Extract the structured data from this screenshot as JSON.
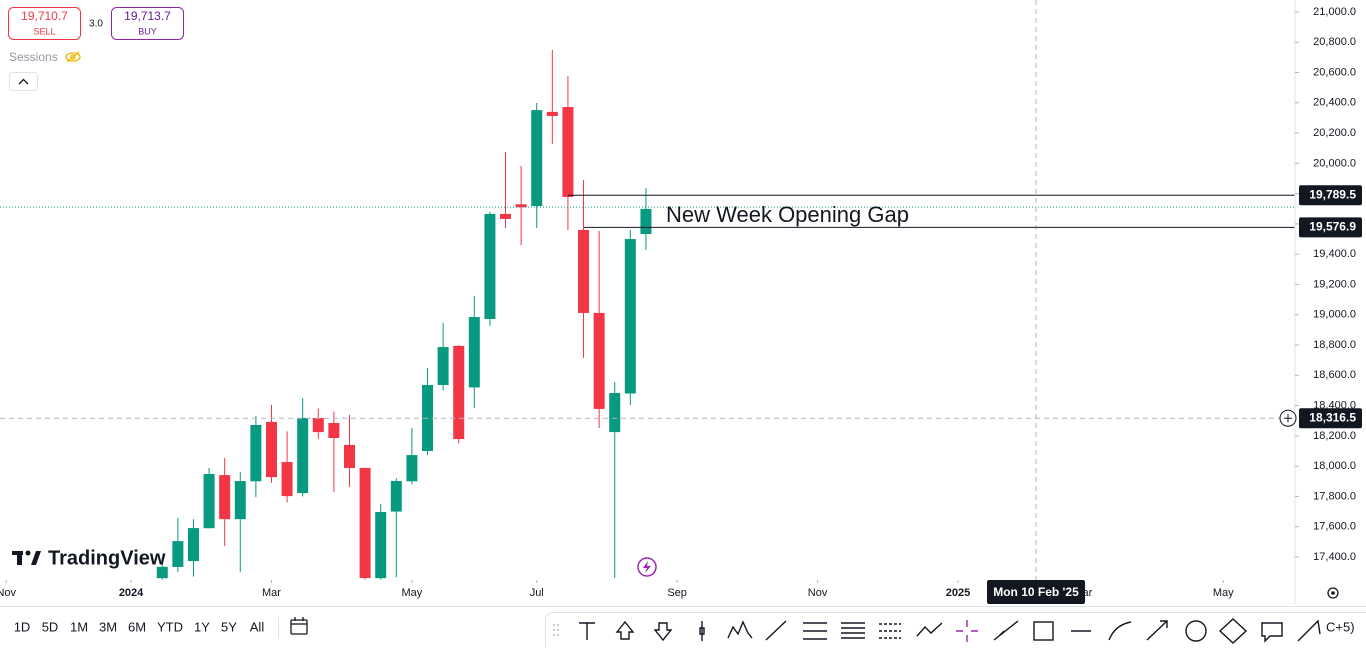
{
  "ui": {
    "sell": {
      "price": "19,710.7",
      "label": "SELL"
    },
    "spread": "3.0",
    "buy": {
      "price": "19,713.7",
      "label": "BUY"
    },
    "sessions": "Sessions",
    "logo": "TradingView",
    "timeframes": [
      "1D",
      "5D",
      "1M",
      "3M",
      "6M",
      "YTD",
      "1Y",
      "5Y",
      "All"
    ],
    "toolbar_more": "C+5)"
  },
  "chart_data": {
    "type": "candlestick",
    "annotation": "New Week Opening Gap",
    "x": [
      0,
      1,
      2,
      3,
      4,
      5,
      6,
      7,
      8,
      9,
      10,
      11,
      12,
      13,
      14,
      15,
      16,
      17,
      18,
      19,
      20,
      21,
      22,
      23,
      24,
      25,
      26,
      27,
      28,
      29,
      30,
      31
    ],
    "open": [
      17260,
      17334,
      17373,
      17590,
      17941,
      17650,
      17900,
      18292,
      18027,
      17822,
      18318,
      18285,
      18140,
      17988,
      17260,
      17700,
      17900,
      18100,
      18536,
      18794,
      18520,
      18972,
      19666,
      19730,
      19718,
      20340,
      20372,
      19560,
      19012,
      18225,
      18480,
      19533
    ],
    "high": [
      17360,
      17657,
      17650,
      17988,
      18054,
      17960,
      18331,
      18404,
      18230,
      18450,
      18380,
      18360,
      18338,
      17990,
      17750,
      17920,
      18252,
      18648,
      18946,
      18800,
      19124,
      19680,
      20075,
      19983,
      20399,
      20749,
      20577,
      19890,
      19553,
      18556,
      19560,
      19837
    ],
    "low": [
      17250,
      17300,
      17270,
      17590,
      17472,
      17300,
      17796,
      17890,
      17760,
      17800,
      18180,
      17830,
      17862,
      17250,
      17250,
      17267,
      17880,
      18073,
      18500,
      18150,
      18384,
      18926,
      19573,
      19460,
      19573,
      20128,
      19560,
      18714,
      18252,
      17261,
      18404,
      19428
    ],
    "close": [
      17335,
      17505,
      17591,
      17948,
      17650,
      17902,
      18272,
      17928,
      17802,
      18318,
      18225,
      18186,
      17988,
      17261,
      17697,
      17902,
      18073,
      18536,
      18787,
      18179,
      18985,
      19666,
      19633,
      19710,
      20352,
      20313,
      19778,
      19012,
      18378,
      18483,
      19500,
      19699
    ],
    "up_color": "#089981",
    "down_color": "#f23645",
    "current_price": 19710.7,
    "levels": [
      {
        "value": 19789.5,
        "label": "19,789.5"
      },
      {
        "value": 19576.9,
        "label": "19,576.9"
      }
    ],
    "crosshair": {
      "price": {
        "value": 18316.5,
        "label": "18,316.5"
      },
      "x": 56,
      "date_label": "Mon 10 Feb '25"
    },
    "ylim": [
      17248,
      21079
    ],
    "yticks": [
      {
        "value": 17400,
        "label": "17,400.0"
      },
      {
        "value": 17600,
        "label": "17,600.0"
      },
      {
        "value": 17800,
        "label": "17,800.0"
      },
      {
        "value": 18000,
        "label": "18,000.0"
      },
      {
        "value": 18200,
        "label": "18,200.0"
      },
      {
        "value": 18400,
        "label": "18,400.0"
      },
      {
        "value": 18600,
        "label": "18,600.0"
      },
      {
        "value": 18800,
        "label": "18,800.0"
      },
      {
        "value": 19000,
        "label": "19,000.0"
      },
      {
        "value": 19200,
        "label": "19,200.0"
      },
      {
        "value": 19400,
        "label": "19,400.0"
      },
      {
        "value": 19600,
        "label": "19,600.0"
      },
      {
        "value": 19800,
        "label": "19,800.0"
      },
      {
        "value": 20000,
        "label": "20,000.0"
      },
      {
        "value": 20200,
        "label": "20,200.0"
      },
      {
        "value": 20400,
        "label": "20,400.0"
      },
      {
        "value": 20600,
        "label": "20,600.0"
      },
      {
        "value": 20800,
        "label": "20,800.0"
      },
      {
        "value": 21000,
        "label": "21,000.0"
      }
    ],
    "xlim": [
      -10.4,
      72.6
    ],
    "xticks": [
      {
        "value": -10,
        "label": "Nov"
      },
      {
        "value": -2,
        "label": "2024"
      },
      {
        "value": 7,
        "label": "Mar"
      },
      {
        "value": 16,
        "label": "May"
      },
      {
        "value": 24,
        "label": "Jul"
      },
      {
        "value": 33,
        "label": "Sep"
      },
      {
        "value": 42,
        "label": "Nov"
      },
      {
        "value": 51,
        "label": "2025"
      },
      {
        "value": 59,
        "label": "Mar"
      },
      {
        "value": 68,
        "label": "May"
      }
    ]
  }
}
